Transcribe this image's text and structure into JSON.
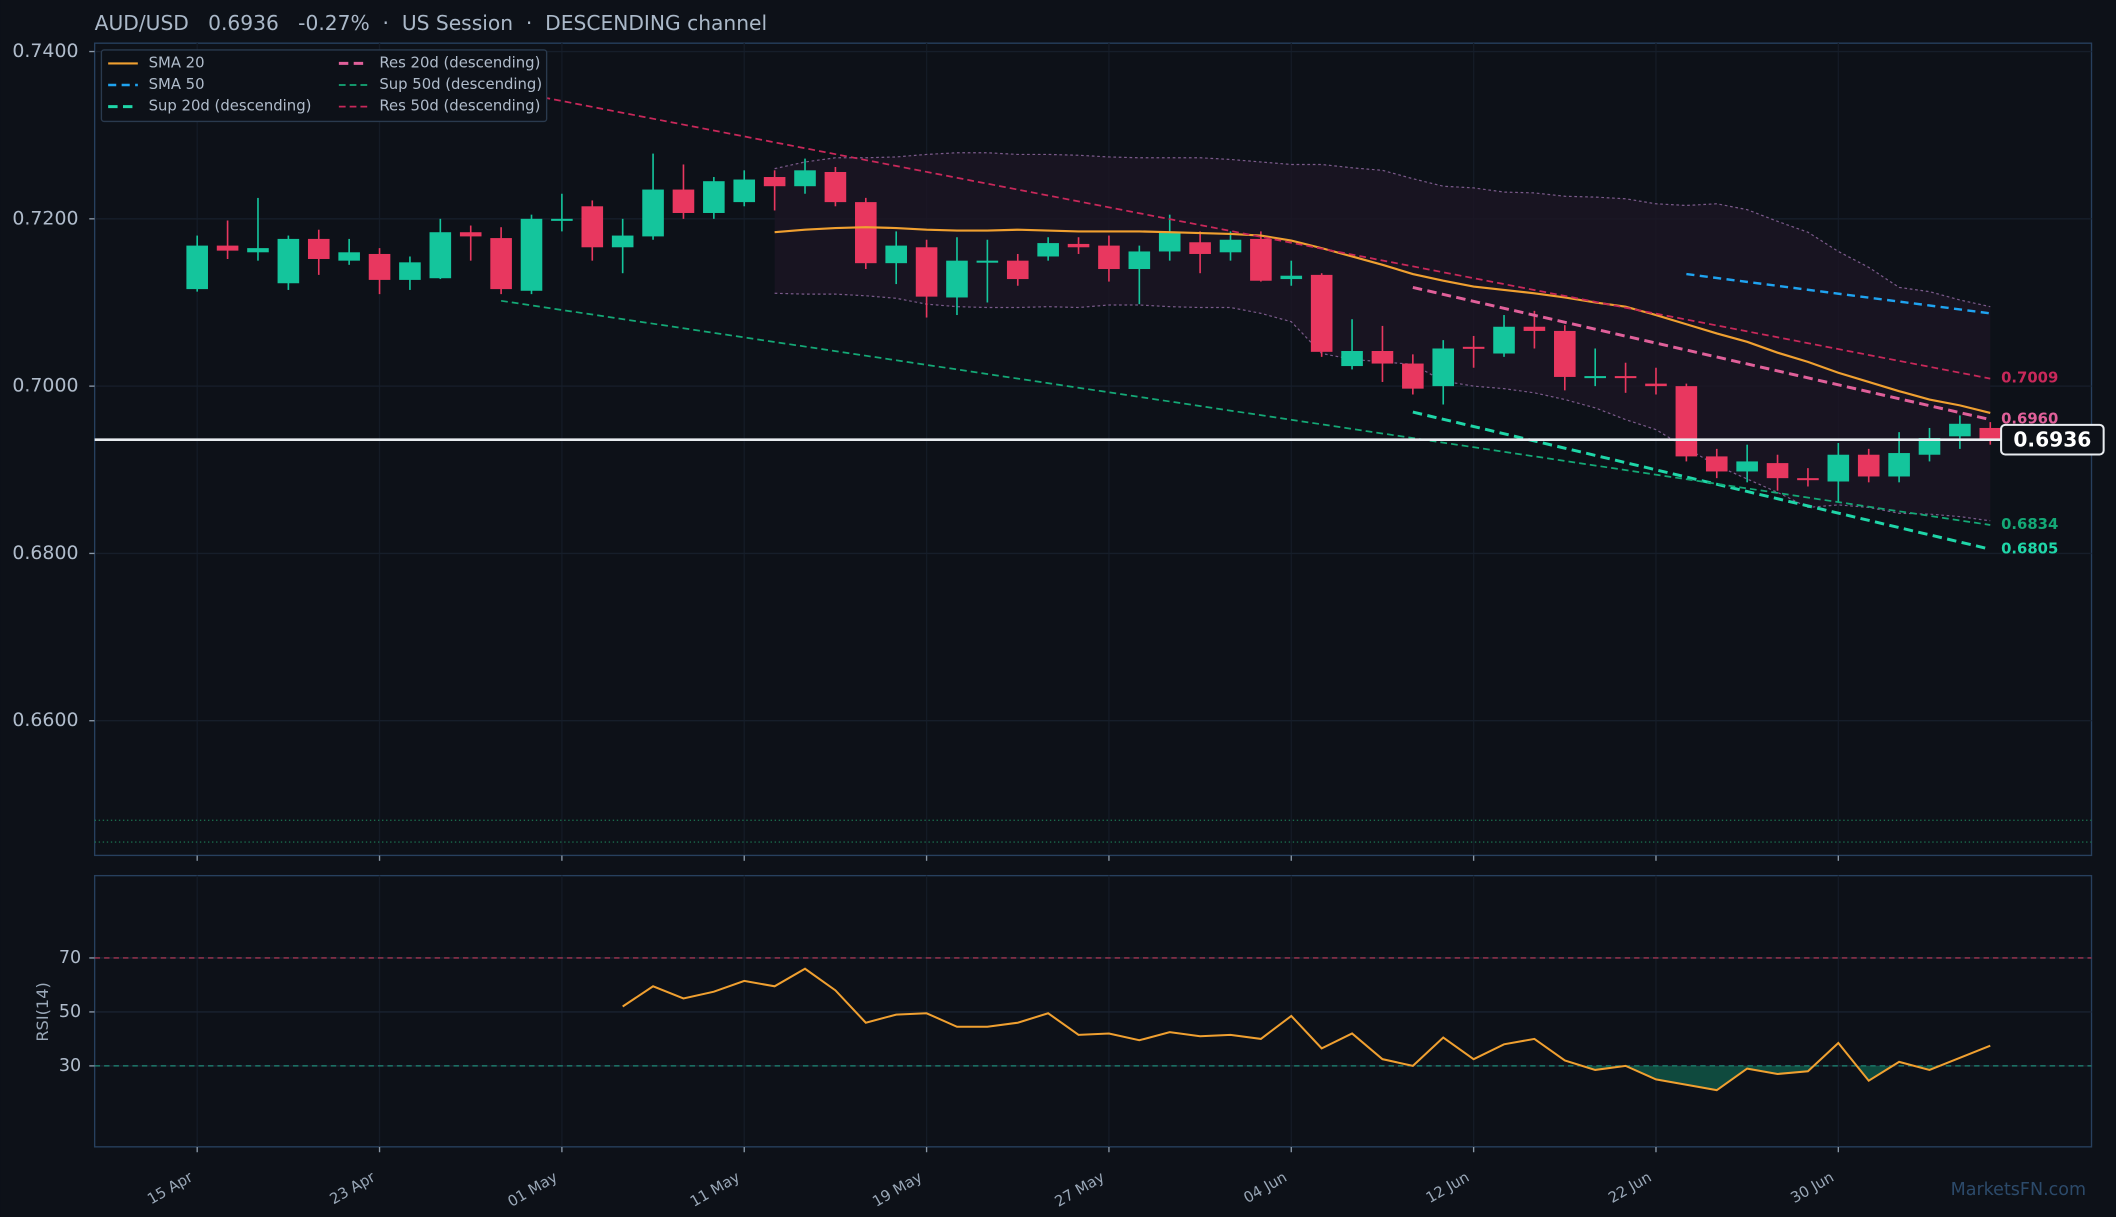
{
  "chart_data": [
    {
      "type": "candlestick",
      "title": "AUD/USD   0.6936   -0.27%  ·  US Session  ·  DESCENDING channel",
      "categories": [
        "15 Apr",
        null,
        null,
        null,
        null,
        null,
        "23 Apr",
        null,
        null,
        null,
        null,
        null,
        "01 May",
        null,
        null,
        null,
        null,
        null,
        "11 May",
        null,
        null,
        null,
        null,
        null,
        "19 May",
        null,
        null,
        null,
        null,
        null,
        "27 May",
        null,
        null,
        null,
        null,
        null,
        "04 Jun",
        null,
        null,
        null,
        null,
        null,
        "12 Jun",
        null,
        null,
        null,
        null,
        null,
        "22 Jun",
        null,
        null,
        null,
        null,
        null,
        "30 Jun",
        null,
        null,
        null,
        null,
        null
      ],
      "open": [
        0.7116,
        0.7168,
        0.716,
        0.7123,
        0.7176,
        0.715,
        0.7158,
        0.7127,
        0.7129,
        0.7184,
        0.7177,
        0.7114,
        0.7199,
        0.7215,
        0.7166,
        0.7179,
        0.7235,
        0.7207,
        0.722,
        0.725,
        0.7239,
        0.7256,
        0.722,
        0.7147,
        0.7166,
        0.7106,
        0.7148,
        0.715,
        0.7155,
        0.717,
        0.7168,
        0.714,
        0.7161,
        0.7172,
        0.716,
        0.7176,
        0.7128,
        0.7133,
        0.7024,
        0.7042,
        0.7027,
        0.7,
        0.7047,
        0.7039,
        0.7071,
        0.7066,
        0.701,
        0.7012,
        0.7003,
        0.7,
        0.6916,
        0.6898,
        0.6908,
        0.689,
        0.6886,
        0.6918,
        0.6892,
        0.6918,
        0.694,
        0.695
      ],
      "high": [
        0.718,
        0.7198,
        0.7225,
        0.718,
        0.7187,
        0.7176,
        0.7165,
        0.7155,
        0.72,
        0.7192,
        0.719,
        0.7205,
        0.723,
        0.7222,
        0.72,
        0.7278,
        0.7265,
        0.725,
        0.7258,
        0.7258,
        0.7272,
        0.7262,
        0.7225,
        0.7185,
        0.7175,
        0.7178,
        0.7175,
        0.7158,
        0.7178,
        0.7178,
        0.718,
        0.7168,
        0.7205,
        0.7185,
        0.7185,
        0.7185,
        0.715,
        0.7135,
        0.708,
        0.7072,
        0.7038,
        0.7055,
        0.706,
        0.7085,
        0.709,
        0.7073,
        0.7045,
        0.7028,
        0.7022,
        0.7003,
        0.6925,
        0.693,
        0.6918,
        0.6902,
        0.6932,
        0.6925,
        0.6945,
        0.695,
        0.6965,
        0.6957
      ],
      "low": [
        0.7113,
        0.7152,
        0.715,
        0.7115,
        0.7133,
        0.7145,
        0.711,
        0.7115,
        0.7128,
        0.715,
        0.711,
        0.711,
        0.7185,
        0.715,
        0.7135,
        0.7175,
        0.72,
        0.72,
        0.7215,
        0.721,
        0.723,
        0.7215,
        0.714,
        0.7122,
        0.7082,
        0.7085,
        0.71,
        0.712,
        0.715,
        0.7158,
        0.7125,
        0.7098,
        0.715,
        0.7135,
        0.715,
        0.7125,
        0.712,
        0.7035,
        0.702,
        0.7005,
        0.699,
        0.6978,
        0.7022,
        0.7035,
        0.7045,
        0.6995,
        0.7,
        0.6992,
        0.699,
        0.691,
        0.689,
        0.6885,
        0.6875,
        0.688,
        0.6862,
        0.6885,
        0.6885,
        0.691,
        0.6925,
        0.693
      ],
      "close": [
        0.7168,
        0.7162,
        0.7165,
        0.7176,
        0.7152,
        0.716,
        0.7127,
        0.7148,
        0.7184,
        0.7179,
        0.7116,
        0.72,
        0.72,
        0.7166,
        0.718,
        0.7235,
        0.7207,
        0.7245,
        0.7247,
        0.7239,
        0.7258,
        0.722,
        0.7147,
        0.7168,
        0.7107,
        0.715,
        0.715,
        0.7128,
        0.7171,
        0.7166,
        0.714,
        0.7161,
        0.7184,
        0.7158,
        0.7175,
        0.7126,
        0.7132,
        0.7041,
        0.7042,
        0.7027,
        0.6997,
        0.7045,
        0.7045,
        0.7071,
        0.7066,
        0.7011,
        0.7012,
        0.701,
        0.7,
        0.6916,
        0.6898,
        0.691,
        0.689,
        0.6889,
        0.6918,
        0.6892,
        0.692,
        0.6938,
        0.6955,
        0.6936
      ],
      "up_color": "#14c59c",
      "down_color": "#e8375f",
      "band": {
        "color": "#7a5a8a",
        "upper": [
          null,
          null,
          null,
          null,
          null,
          null,
          null,
          null,
          null,
          null,
          null,
          null,
          null,
          null,
          null,
          null,
          null,
          null,
          null,
          0.726,
          0.7268,
          0.7273,
          0.7273,
          0.7274,
          0.7277,
          0.7279,
          0.7279,
          0.7277,
          0.7277,
          0.7276,
          0.7274,
          0.7273,
          0.7273,
          0.7273,
          0.7271,
          0.7268,
          0.7265,
          0.7265,
          0.7261,
          0.7258,
          0.7248,
          0.7239,
          0.7237,
          0.7232,
          0.7231,
          0.7227,
          0.7226,
          0.7224,
          0.7218,
          0.7216,
          0.7218,
          0.7211,
          0.7197,
          0.7184,
          0.7161,
          0.7142,
          0.7118,
          0.7113,
          0.7103,
          0.7095
        ],
        "lower": [
          null,
          null,
          null,
          null,
          null,
          null,
          null,
          null,
          null,
          null,
          null,
          null,
          null,
          null,
          null,
          null,
          null,
          null,
          null,
          0.7111,
          0.711,
          0.711,
          0.7108,
          0.7105,
          0.7098,
          0.7095,
          0.7094,
          0.7094,
          0.7095,
          0.7094,
          0.7097,
          0.7097,
          0.7095,
          0.7094,
          0.7094,
          0.7087,
          0.7077,
          0.7039,
          0.7032,
          0.7029,
          0.7026,
          0.7006,
          0.7,
          0.6997,
          0.6992,
          0.6984,
          0.6974,
          0.696,
          0.6948,
          0.6926,
          0.6905,
          0.6889,
          0.6873,
          0.6855,
          0.6858,
          0.6855,
          0.6848,
          0.6847,
          0.6844,
          0.6839
        ]
      },
      "series": [
        {
          "name": "SMA 20",
          "color": "#f0a030",
          "width": 1.6,
          "values": [
            null,
            null,
            null,
            null,
            null,
            null,
            null,
            null,
            null,
            null,
            null,
            null,
            null,
            null,
            null,
            null,
            null,
            null,
            null,
            0.7184,
            0.7187,
            0.7189,
            0.719,
            0.7189,
            0.7187,
            0.7186,
            0.7186,
            0.7187,
            0.7186,
            0.7185,
            0.7185,
            0.7185,
            0.7184,
            0.7183,
            0.7182,
            0.718,
            0.7174,
            0.7165,
            0.7155,
            0.7145,
            0.7134,
            0.7126,
            0.7119,
            0.7115,
            0.7111,
            0.7106,
            0.71,
            0.7095,
            0.7085,
            0.7074,
            0.7063,
            0.7053,
            0.704,
            0.7029,
            0.7016,
            0.7005,
            0.6994,
            0.6984,
            0.6977,
            0.6968
          ]
        },
        {
          "name": "SMA 50",
          "color": "#1fa3f0",
          "width": 1.8,
          "dash": "6,4",
          "x": [
            49,
            59
          ],
          "values": [
            0.7134,
            0.7087
          ]
        },
        {
          "name": "Sup 20d (descending)",
          "color": "#1fd6a8",
          "width": 2.2,
          "dash": "7,4",
          "x": [
            40,
            59
          ],
          "values": [
            0.6969,
            0.6805
          ],
          "value_labels": [
            null,
            "0.6805"
          ]
        },
        {
          "name": "Res 20d (descending)",
          "color": "#e0609a",
          "width": 2.2,
          "dash": "7,4",
          "x": [
            40,
            59
          ],
          "values": [
            0.7118,
            0.696
          ],
          "value_labels": [
            null,
            "0.6960"
          ]
        },
        {
          "name": "Sup 50d (descending)",
          "color": "#14a876",
          "width": 1.3,
          "dash": "5,3",
          "x": [
            10,
            59
          ],
          "values": [
            0.7102,
            0.6834
          ],
          "value_labels": [
            null,
            "0.6834"
          ]
        },
        {
          "name": "Res 50d (descending)",
          "color": "#c8285a",
          "width": 1.3,
          "dash": "5,3",
          "x": [
            10,
            59
          ],
          "values": [
            0.7355,
            0.7009
          ],
          "value_labels": [
            null,
            "0.7009"
          ]
        }
      ],
      "last_price": {
        "value": 0.6936,
        "label": "0.6936"
      },
      "hlines": [
        0.6481,
        0.6455
      ],
      "ylim": [
        0.6439,
        0.741
      ],
      "yticks": [
        {
          "value": 0.74,
          "label": "0.7400"
        },
        {
          "value": 0.72,
          "label": "0.7200"
        },
        {
          "value": 0.7,
          "label": "0.7000"
        },
        {
          "value": 0.68,
          "label": "0.6800"
        },
        {
          "value": 0.66,
          "label": "0.6600"
        }
      ],
      "grid": true
    },
    {
      "type": "line",
      "y_label": "RSI(14)",
      "color": "#f0a030",
      "values": [
        null,
        null,
        null,
        null,
        null,
        null,
        null,
        null,
        null,
        null,
        null,
        null,
        null,
        null,
        52,
        59.5,
        55,
        57.5,
        61.5,
        59.5,
        66,
        58,
        46,
        49,
        49.5,
        44.5,
        44.5,
        46,
        49.5,
        41.5,
        42,
        39.5,
        42.5,
        41,
        41.5,
        40,
        48.5,
        36.5,
        42,
        32.5,
        30,
        40.5,
        32.5,
        38,
        40,
        32,
        28.5,
        30,
        25,
        23,
        21,
        29,
        27,
        28,
        38.5,
        24.5,
        31.5,
        28.5,
        33,
        37.5
      ],
      "overbought": 70,
      "oversold": 30,
      "fill_color": "#137a5f",
      "ylim": [
        0,
        100.5
      ],
      "yticks": [
        30,
        50,
        70
      ],
      "grid": true,
      "watermark": "MarketsFN.com"
    }
  ]
}
